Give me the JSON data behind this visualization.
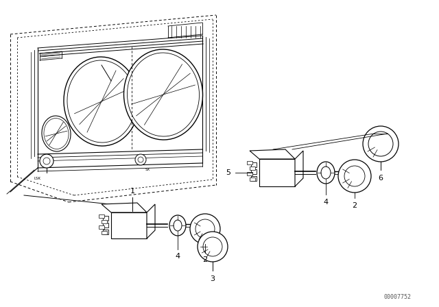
{
  "background_color": "#ffffff",
  "line_color": "#000000",
  "fig_width": 6.4,
  "fig_height": 4.48,
  "dpi": 100,
  "watermark": "00007752"
}
